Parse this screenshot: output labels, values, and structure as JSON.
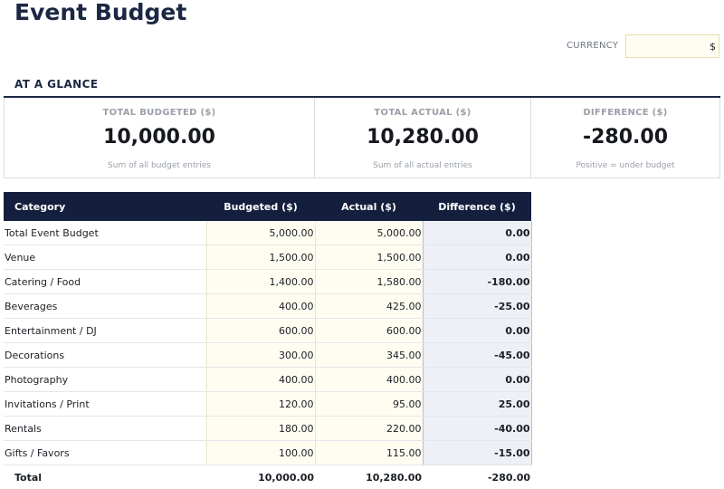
{
  "page": {
    "title": "Event Budget"
  },
  "currency": {
    "label": "CURRENCY",
    "value": "$"
  },
  "glance": {
    "heading": "AT A GLANCE",
    "cards": [
      {
        "label": "TOTAL BUDGETED ($)",
        "value": "10,000.00",
        "note": "Sum of all budget entries"
      },
      {
        "label": "TOTAL ACTUAL ($)",
        "value": "10,280.00",
        "note": "Sum of all actual entries"
      },
      {
        "label": "DIFFERENCE ($)",
        "value": "-280.00",
        "note": "Positive = under budget"
      }
    ]
  },
  "table": {
    "headers": {
      "category": "Category",
      "budgeted": "Budgeted ($)",
      "actual": "Actual ($)",
      "difference": "Difference ($)"
    },
    "rows": [
      {
        "category": "Total Event Budget",
        "budgeted": "5,000.00",
        "actual": "5,000.00",
        "difference": "0.00"
      },
      {
        "category": "Venue",
        "budgeted": "1,500.00",
        "actual": "1,500.00",
        "difference": "0.00"
      },
      {
        "category": "Catering / Food",
        "budgeted": "1,400.00",
        "actual": "1,580.00",
        "difference": "-180.00"
      },
      {
        "category": "Beverages",
        "budgeted": "400.00",
        "actual": "425.00",
        "difference": "-25.00"
      },
      {
        "category": "Entertainment / DJ",
        "budgeted": "600.00",
        "actual": "600.00",
        "difference": "0.00"
      },
      {
        "category": "Decorations",
        "budgeted": "300.00",
        "actual": "345.00",
        "difference": "-45.00"
      },
      {
        "category": "Photography",
        "budgeted": "400.00",
        "actual": "400.00",
        "difference": "0.00"
      },
      {
        "category": "Invitations / Print",
        "budgeted": "120.00",
        "actual": "95.00",
        "difference": "25.00"
      },
      {
        "category": "Rentals",
        "budgeted": "180.00",
        "actual": "220.00",
        "difference": "-40.00"
      },
      {
        "category": "Gifts / Favors",
        "budgeted": "100.00",
        "actual": "115.00",
        "difference": "-15.00"
      }
    ],
    "total": {
      "category": "Total",
      "budgeted": "10,000.00",
      "actual": "10,280.00",
      "difference": "-280.00"
    }
  }
}
